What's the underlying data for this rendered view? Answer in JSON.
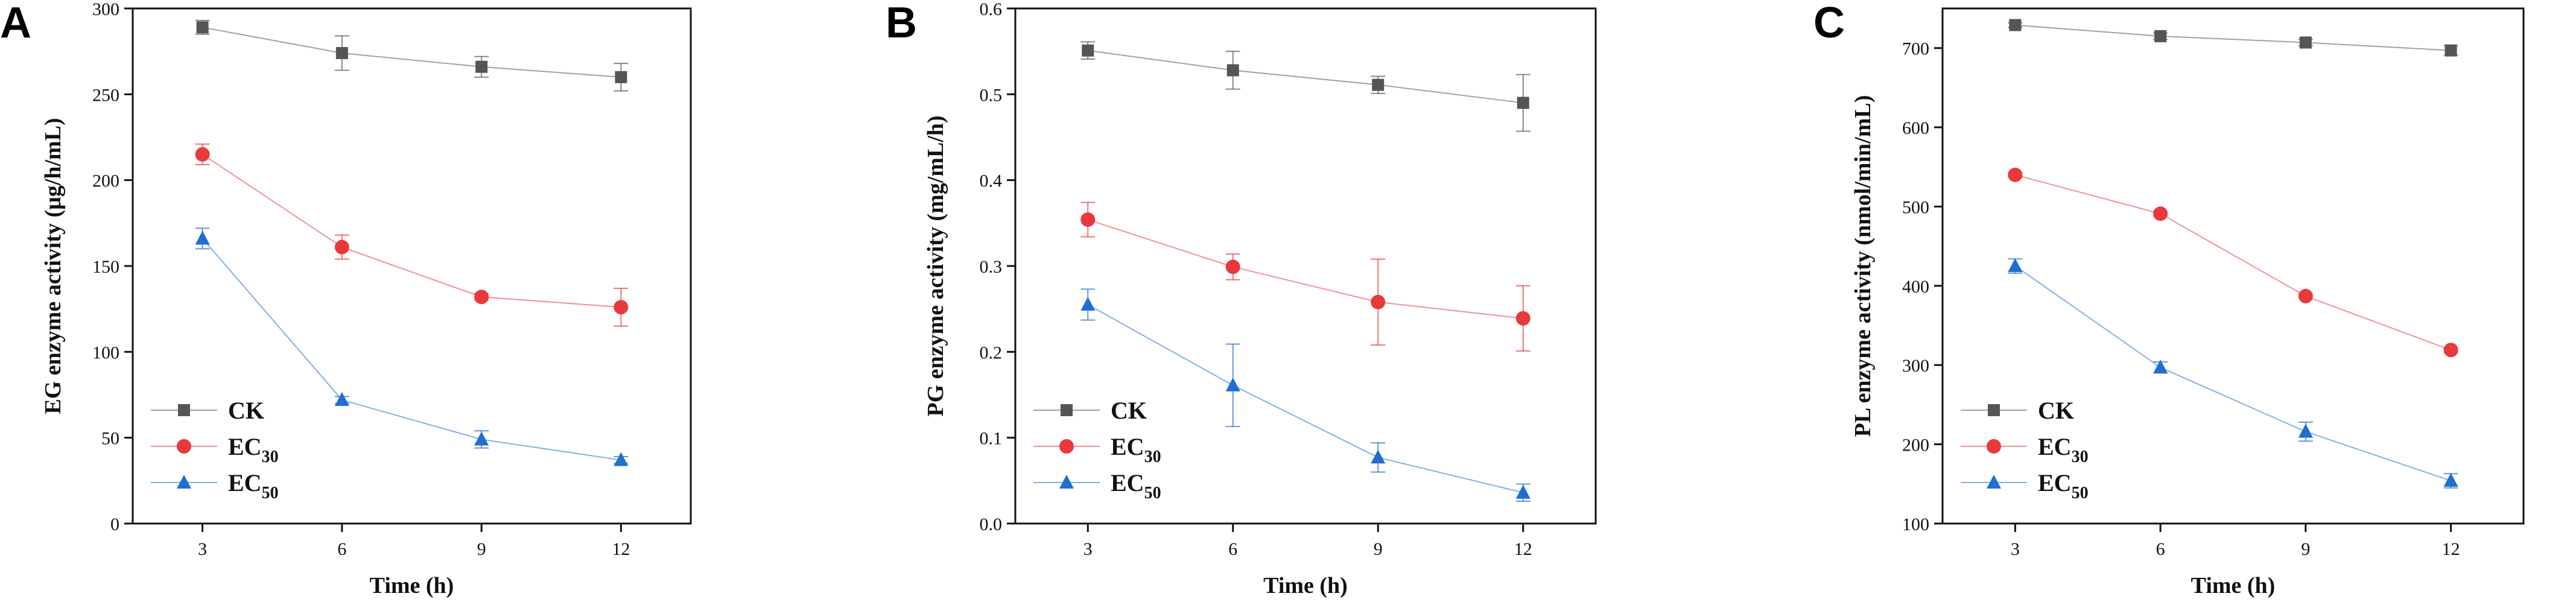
{
  "chart_data": [
    {
      "panel": "A",
      "type": "line",
      "xlabel": "Time (h)",
      "ylabel": "EG enzyme activity (μg/h/mL)",
      "x": [
        3,
        6,
        9,
        12
      ],
      "xticks": [
        "3",
        "6",
        "9",
        "12"
      ],
      "xlim": [
        1.5,
        13.5
      ],
      "ylim": [
        0,
        300
      ],
      "yticks": [
        0,
        50,
        100,
        150,
        200,
        250,
        300
      ],
      "ytick_labels": [
        "0",
        "50",
        "100",
        "150",
        "200",
        "250",
        "300"
      ],
      "series": [
        {
          "name": "CK",
          "sub": "",
          "color": "#555555",
          "marker": "square",
          "values": [
            289,
            274,
            266,
            260
          ],
          "errors": [
            4,
            10,
            6,
            8
          ]
        },
        {
          "name": "EC",
          "sub": "30",
          "color": "#e8393d",
          "marker": "circle",
          "values": [
            215,
            161,
            132,
            126
          ],
          "errors": [
            6,
            7,
            2,
            11
          ]
        },
        {
          "name": "EC",
          "sub": "50",
          "color": "#1f6fd1",
          "marker": "triangle",
          "values": [
            166,
            72,
            49,
            37
          ],
          "errors": [
            6,
            2,
            5,
            2
          ]
        }
      ]
    },
    {
      "panel": "B",
      "type": "line",
      "xlabel": "Time (h)",
      "ylabel": "PG enzyme activity (mg/mL/h)",
      "x": [
        3,
        6,
        9,
        12
      ],
      "xticks": [
        "3",
        "6",
        "9",
        "12"
      ],
      "xlim": [
        1.5,
        13.5
      ],
      "ylim": [
        0,
        0.6
      ],
      "yticks": [
        0,
        0.1,
        0.2,
        0.3,
        0.4,
        0.5,
        0.6
      ],
      "ytick_labels": [
        "0.0",
        "0.1",
        "0.2",
        "0.3",
        "0.4",
        "0.5",
        "0.6"
      ],
      "series": [
        {
          "name": "CK",
          "sub": "",
          "color": "#555555",
          "marker": "square",
          "values": [
            0.551,
            0.528,
            0.511,
            0.49
          ],
          "errors": [
            0.01,
            0.022,
            0.01,
            0.033
          ]
        },
        {
          "name": "EC",
          "sub": "30",
          "color": "#e8393d",
          "marker": "circle",
          "values": [
            0.354,
            0.299,
            0.258,
            0.239
          ],
          "errors": [
            0.02,
            0.015,
            0.05,
            0.038
          ]
        },
        {
          "name": "EC",
          "sub": "50",
          "color": "#1f6fd1",
          "marker": "triangle",
          "values": [
            0.255,
            0.161,
            0.077,
            0.036
          ],
          "errors": [
            0.018,
            0.048,
            0.017,
            0.01
          ]
        }
      ]
    },
    {
      "panel": "C",
      "type": "line",
      "xlabel": "Time (h)",
      "ylabel": "PL enzyme activity (nmol/min/mL)",
      "x": [
        3,
        6,
        9,
        12
      ],
      "xticks": [
        "3",
        "6",
        "9",
        "12"
      ],
      "xlim": [
        1.5,
        13.5
      ],
      "ylim": [
        100,
        750
      ],
      "yticks": [
        100,
        200,
        300,
        400,
        500,
        600,
        700
      ],
      "ytick_labels": [
        "100",
        "200",
        "300",
        "400",
        "500",
        "600",
        "700"
      ],
      "series": [
        {
          "name": "CK",
          "sub": "",
          "color": "#555555",
          "marker": "square",
          "values": [
            729,
            715,
            707,
            697
          ],
          "errors": [
            3,
            4,
            4,
            6
          ]
        },
        {
          "name": "EC",
          "sub": "30",
          "color": "#e8393d",
          "marker": "circle",
          "values": [
            540,
            491,
            387,
            319
          ],
          "errors": [
            3,
            3,
            3,
            3
          ]
        },
        {
          "name": "EC",
          "sub": "50",
          "color": "#1f6fd1",
          "marker": "triangle",
          "values": [
            425,
            297,
            216,
            154
          ],
          "errors": [
            9,
            7,
            12,
            9
          ]
        }
      ]
    }
  ]
}
